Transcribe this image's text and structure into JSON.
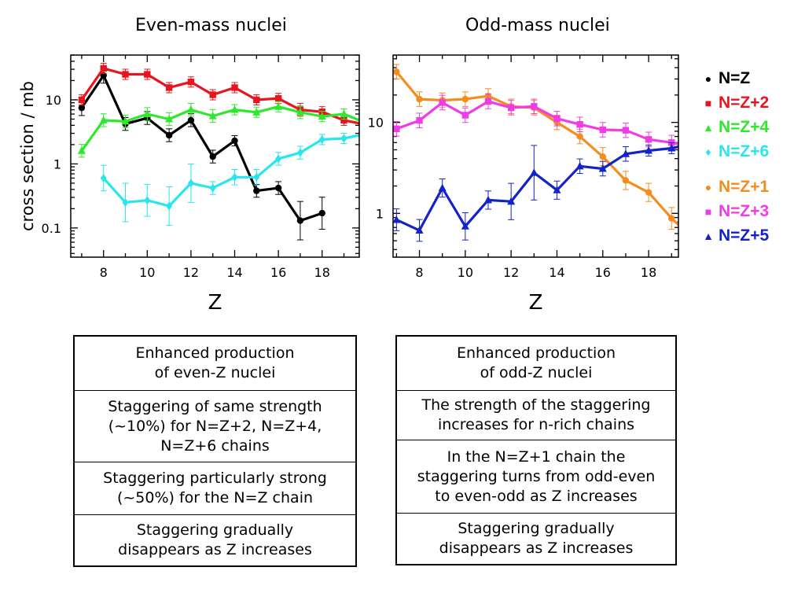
{
  "chart_data": [
    {
      "type": "line",
      "title": "Even-mass nuclei",
      "xlabel": "Z",
      "ylabel": "cross section / mb",
      "xlim": [
        6.5,
        19.7
      ],
      "ylim": [
        0.035,
        50
      ],
      "yscale": "log",
      "xticks": [
        8,
        10,
        12,
        14,
        16,
        18
      ],
      "yticks": [
        0.1,
        1,
        10
      ],
      "ytick_labels": [
        "0.1",
        "1",
        "10"
      ],
      "series": [
        {
          "name": "N=Z",
          "color": "#000000",
          "marker": "circle",
          "x": [
            7,
            8,
            9,
            10,
            11,
            12,
            13,
            14,
            15,
            16,
            17,
            18
          ],
          "y": [
            7.5,
            24,
            4.2,
            5.2,
            2.8,
            4.8,
            1.3,
            2.3,
            0.38,
            0.42,
            0.13,
            0.17
          ],
          "err": [
            0.12,
            0.12,
            0.1,
            0.1,
            0.1,
            0.1,
            0.1,
            0.08,
            0.1,
            0.1,
            0.3,
            0.25
          ]
        },
        {
          "name": "N=Z+2",
          "color": "#e8141e",
          "marker": "square",
          "x": [
            7,
            8,
            9,
            10,
            11,
            12,
            13,
            14,
            15,
            16,
            17,
            18,
            19,
            19.7
          ],
          "y": [
            10,
            31,
            25,
            25,
            15.5,
            19,
            12,
            15.5,
            10,
            10.5,
            7,
            6.5,
            4.8,
            4.3
          ],
          "err": [
            0.08,
            0.08,
            0.08,
            0.08,
            0.08,
            0.08,
            0.08,
            0.08,
            0.08,
            0.08,
            0.1,
            0.08,
            0.08,
            0
          ]
        },
        {
          "name": "N=Z+4",
          "color": "#2ee82e",
          "marker": "triangle",
          "x": [
            7,
            8,
            9,
            10,
            11,
            12,
            13,
            14,
            15,
            16,
            17,
            18,
            19,
            19.7
          ],
          "y": [
            1.6,
            4.8,
            4.6,
            6,
            5,
            7,
            5.6,
            7,
            6.4,
            7.8,
            6.4,
            5.5,
            6,
            4.8
          ],
          "err": [
            0.1,
            0.1,
            0.1,
            0.1,
            0.1,
            0.1,
            0.1,
            0.08,
            0.08,
            0.08,
            0.1,
            0.08,
            0.08,
            0
          ]
        },
        {
          "name": "N=Z+6",
          "color": "#29e6ee",
          "marker": "diamond",
          "x": [
            8,
            9,
            10,
            11,
            12,
            13,
            14,
            15,
            16,
            17,
            18,
            19,
            19.7
          ],
          "y": [
            0.6,
            0.25,
            0.27,
            0.22,
            0.5,
            0.42,
            0.62,
            0.62,
            1.2,
            1.5,
            2.4,
            2.5,
            2.8
          ],
          "err": [
            0.2,
            0.3,
            0.25,
            0.3,
            0.3,
            0.1,
            0.12,
            0.12,
            0.1,
            0.1,
            0.08,
            0.08,
            0
          ]
        }
      ]
    },
    {
      "type": "line",
      "title": "Odd-mass nuclei",
      "xlabel": "Z",
      "ylabel": "",
      "xlim": [
        6.85,
        19.3
      ],
      "ylim": [
        0.33,
        55
      ],
      "yscale": "log",
      "xticks": [
        8,
        10,
        12,
        14,
        16,
        18
      ],
      "yticks": [
        1,
        10
      ],
      "ytick_labels": [
        "1",
        "10"
      ],
      "series": [
        {
          "name": "N=Z+1",
          "color": "#f58c1e",
          "marker": "circle",
          "x": [
            7,
            8,
            9,
            10,
            11,
            12,
            13,
            14,
            15,
            16,
            17,
            18,
            19,
            19.3
          ],
          "y": [
            36,
            18,
            17.5,
            18,
            19.5,
            15,
            14.5,
            10,
            7,
            4.2,
            2.3,
            1.7,
            0.88,
            0.75
          ],
          "err": [
            0.08,
            0.08,
            0.08,
            0.08,
            0.08,
            0.08,
            0.08,
            0.08,
            0.08,
            0.1,
            0.1,
            0.1,
            0.12,
            0
          ]
        },
        {
          "name": "N=Z+3",
          "color": "#f03ce6",
          "marker": "square",
          "x": [
            7,
            8,
            9,
            10,
            11,
            12,
            13,
            14,
            15,
            16,
            17,
            18,
            19,
            19.3
          ],
          "y": [
            8.5,
            10.5,
            16.5,
            12,
            17,
            14.5,
            15,
            11,
            9.5,
            8.3,
            8.2,
            6.5,
            6,
            5.8
          ],
          "err": [
            0.08,
            0.08,
            0.08,
            0.08,
            0.08,
            0.08,
            0.08,
            0.08,
            0.08,
            0.08,
            0.08,
            0.08,
            0.08,
            0
          ]
        },
        {
          "name": "N=Z+5",
          "color": "#1423c8",
          "marker": "triangle",
          "x": [
            7,
            8,
            9,
            10,
            11,
            12,
            13,
            14,
            15,
            16,
            17,
            18,
            19,
            19.3
          ],
          "y": [
            0.85,
            0.65,
            1.9,
            0.72,
            1.4,
            1.35,
            2.8,
            1.8,
            3.3,
            3.1,
            4.5,
            4.9,
            5.2,
            5.4
          ],
          "err": [
            0.12,
            0.12,
            0.1,
            0.15,
            0.1,
            0.2,
            0.3,
            0.1,
            0.08,
            0.08,
            0.08,
            0.06,
            0.06,
            0
          ]
        }
      ]
    }
  ],
  "legend": {
    "group1": [
      {
        "label": "N=Z",
        "color": "#000000",
        "marker": "●"
      },
      {
        "label": "N=Z+2",
        "color": "#e8141e",
        "marker": "■"
      },
      {
        "label": "N=Z+4",
        "color": "#2ee82e",
        "marker": "▲"
      },
      {
        "label": "N=Z+6",
        "color": "#29e6ee",
        "marker": "♦"
      }
    ],
    "group2": [
      {
        "label": "N=Z+1",
        "color": "#f58c1e",
        "marker": "●"
      },
      {
        "label": "N=Z+3",
        "color": "#f03ce6",
        "marker": "■"
      },
      {
        "label": "N=Z+5",
        "color": "#1423c8",
        "marker": "▲"
      }
    ]
  },
  "tables": {
    "even": [
      "Enhanced production\nof even-Z nuclei",
      "Staggering of same strength\n(~10%) for N=Z+2, N=Z+4,\nN=Z+6 chains",
      "Staggering particularly strong\n(~50%) for the N=Z chain",
      "Staggering gradually\ndisappears as Z increases"
    ],
    "odd": [
      "Enhanced production\nof odd-Z nuclei",
      "The strength of the staggering\nincreases for n-rich chains",
      "In the N=Z+1 chain the\nstaggering turns from odd-even\nto even-odd as Z increases",
      "Staggering gradually\ndisappears as Z increases"
    ]
  }
}
